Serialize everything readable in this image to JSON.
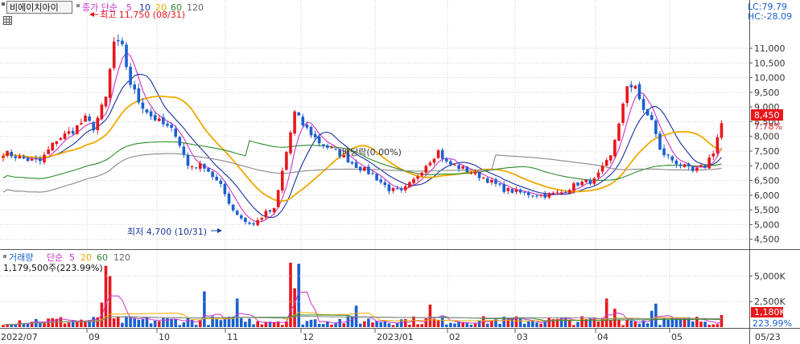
{
  "header": {
    "name": "비에이치아이",
    "ma_title": "종가 단순",
    "periods": [
      "5",
      "10",
      "20",
      "60",
      "120"
    ],
    "lc": "LC:79.79",
    "hc": "HC:-28.09"
  },
  "price_panel": {
    "ylim": [
      4300,
      12150
    ],
    "y_ticks": [
      "11,000",
      "10,500",
      "10,000",
      "9,500",
      "9,000",
      "8,500",
      "8,000",
      "7,500",
      "7,000",
      "6,500",
      "6,000",
      "5,500",
      "5,000",
      "4,500"
    ],
    "current_price": "8,450",
    "current_change": "7.78%",
    "high_annotation": "최고 11,750 (08/31)",
    "low_annotation": "최저 4,700 (10/31)",
    "dividend_annotation": "배당락(0.00%)"
  },
  "volume_panel": {
    "title": "거래량",
    "ma_title": "단순",
    "periods": [
      "5",
      "20",
      "60",
      "120"
    ],
    "current_value": "1,179,500주(223.99%)",
    "y_ticks": [
      "5,000K",
      "2,500K"
    ],
    "current_label": "1,180K",
    "current_pct": "223.99%"
  },
  "x_axis": {
    "labels": [
      "2022/07",
      "09",
      "10",
      "11",
      "12",
      "2023/01",
      "02",
      "03",
      "04",
      "05",
      "05/23"
    ]
  },
  "colors": {
    "up": "#e8161b",
    "down": "#1a5fd0",
    "ma5": "#cc33cc",
    "ma10": "#1a2fa0",
    "ma20": "#f0a800",
    "ma60": "#2e8b2e",
    "ma120": "#888888"
  },
  "chart_data": {
    "type": "candlestick",
    "price_anchors": [
      [
        0,
        7450
      ],
      [
        6,
        7200
      ],
      [
        9,
        7150
      ],
      [
        13,
        7900
      ],
      [
        17,
        8200
      ],
      [
        20,
        8600
      ],
      [
        22,
        8300
      ],
      [
        25,
        9300
      ],
      [
        27,
        11200
      ],
      [
        29,
        11000
      ],
      [
        31,
        9800
      ],
      [
        33,
        9200
      ],
      [
        36,
        8700
      ],
      [
        38,
        8500
      ],
      [
        42,
        8100
      ],
      [
        45,
        7000
      ],
      [
        49,
        7000
      ],
      [
        53,
        6300
      ],
      [
        56,
        5500
      ],
      [
        59,
        5100
      ],
      [
        61,
        5000
      ],
      [
        64,
        5400
      ],
      [
        66,
        5500
      ],
      [
        68,
        6800
      ],
      [
        71,
        8800
      ],
      [
        73,
        8400
      ],
      [
        77,
        7800
      ],
      [
        82,
        7400
      ],
      [
        86,
        7000
      ],
      [
        90,
        6700
      ],
      [
        94,
        6200
      ],
      [
        97,
        6100
      ],
      [
        100,
        6500
      ],
      [
        103,
        7050
      ],
      [
        106,
        7500
      ],
      [
        108,
        7100
      ],
      [
        112,
        6900
      ],
      [
        117,
        6600
      ],
      [
        122,
        6200
      ],
      [
        127,
        6050
      ],
      [
        132,
        6000
      ],
      [
        136,
        6100
      ],
      [
        140,
        6400
      ],
      [
        144,
        6500
      ],
      [
        148,
        7300
      ],
      [
        150,
        8500
      ],
      [
        152,
        9600
      ],
      [
        154,
        9800
      ],
      [
        156,
        8800
      ],
      [
        158,
        8600
      ],
      [
        160,
        7500
      ],
      [
        163,
        7200
      ],
      [
        166,
        6950
      ],
      [
        168,
        6800
      ],
      [
        171,
        7000
      ],
      [
        173,
        7500
      ],
      [
        175,
        8450
      ]
    ],
    "volume_spikes": [
      [
        24,
        2400
      ],
      [
        25,
        6000
      ],
      [
        26,
        5000
      ],
      [
        49,
        3500
      ],
      [
        57,
        2800
      ],
      [
        70,
        6300
      ],
      [
        71,
        3800
      ],
      [
        72,
        6200
      ],
      [
        86,
        2100
      ],
      [
        104,
        2200
      ],
      [
        147,
        2800
      ],
      [
        149,
        1800
      ],
      [
        158,
        1600
      ],
      [
        159,
        2300
      ],
      [
        175,
        1180
      ]
    ],
    "volume_ylim": [
      0,
      7000
    ],
    "ma_periods": [
      5,
      10,
      20,
      60,
      120
    ],
    "volume_ma_periods": [
      5,
      20,
      60,
      120
    ]
  }
}
